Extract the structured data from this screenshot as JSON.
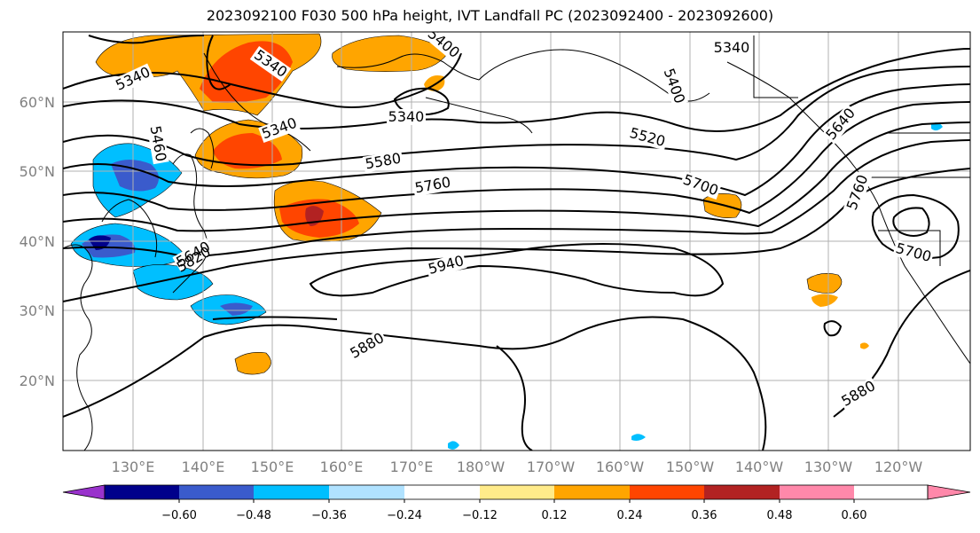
{
  "title": "2023092100 F030 500 hPa height, IVT Landfall PC (2023092400 - 2023092600)",
  "map": {
    "lon_labels": [
      "130°E",
      "140°E",
      "150°E",
      "160°E",
      "170°E",
      "180°W",
      "170°W",
      "160°W",
      "150°W",
      "140°W",
      "130°W",
      "120°W"
    ],
    "lat_labels": [
      "60°N",
      "50°N",
      "40°N",
      "30°N",
      "20°N"
    ],
    "grid": true,
    "lon_range": [
      "120°E",
      "110°W"
    ],
    "lat_range": [
      "10°N",
      "70°N"
    ]
  },
  "height_contour_labels": [
    "5340",
    "5340",
    "5340",
    "5340",
    "5340",
    "5400",
    "5400",
    "5460",
    "5520",
    "5580",
    "5640",
    "5640",
    "5700",
    "5700",
    "5760",
    "5760",
    "5820",
    "5880",
    "5880",
    "5940"
  ],
  "colorbar": {
    "tick_labels": [
      "−0.60",
      "−0.48",
      "−0.36",
      "−0.24",
      "−0.12",
      "0.12",
      "0.24",
      "0.36",
      "0.48",
      "0.60"
    ],
    "colors": [
      "#9932cc",
      "#00008b",
      "#3a5bcc",
      "#00bfff",
      "#b0e2ff",
      "#ffffff",
      "#ffeb8a",
      "#ffa500",
      "#ff4500",
      "#b22222",
      "#ff88aa"
    ]
  }
}
